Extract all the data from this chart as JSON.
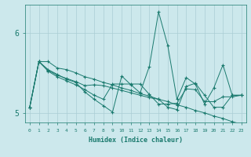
{
  "xlabel": "Humidex (Indice chaleur)",
  "ylabel": "",
  "background_color": "#cce8ec",
  "grid_color": "#aacdd4",
  "line_color": "#1a7a6e",
  "xlim": [
    -0.5,
    23.5
  ],
  "ylim": [
    4.88,
    6.35
  ],
  "yticks": [
    5,
    6
  ],
  "xticks": [
    0,
    1,
    2,
    3,
    4,
    5,
    6,
    7,
    8,
    9,
    10,
    11,
    12,
    13,
    14,
    15,
    16,
    17,
    18,
    19,
    20,
    21,
    22,
    23
  ],
  "series": [
    [
      5.07,
      5.64,
      5.64,
      5.56,
      5.54,
      5.5,
      5.45,
      5.42,
      5.38,
      5.35,
      5.31,
      5.28,
      5.24,
      5.21,
      5.17,
      5.14,
      5.1,
      5.07,
      5.03,
      5.0,
      4.96,
      4.93,
      4.89,
      4.86
    ],
    [
      5.07,
      5.64,
      5.54,
      5.48,
      5.42,
      5.38,
      5.26,
      5.17,
      5.09,
      5.01,
      5.46,
      5.35,
      5.25,
      5.58,
      6.26,
      5.84,
      5.17,
      5.44,
      5.36,
      5.11,
      5.31,
      5.6,
      5.22,
      5.22
    ],
    [
      5.07,
      5.64,
      5.52,
      5.45,
      5.4,
      5.35,
      5.29,
      5.22,
      5.17,
      5.36,
      5.36,
      5.36,
      5.36,
      5.23,
      5.11,
      5.11,
      5.12,
      5.3,
      5.29,
      5.14,
      5.14,
      5.2,
      5.2,
      5.22
    ],
    [
      5.07,
      5.64,
      5.53,
      5.47,
      5.43,
      5.39,
      5.34,
      5.35,
      5.34,
      5.31,
      5.28,
      5.25,
      5.22,
      5.19,
      5.17,
      5.07,
      5.04,
      5.33,
      5.37,
      5.22,
      5.07,
      5.07,
      5.22,
      5.22
    ]
  ]
}
